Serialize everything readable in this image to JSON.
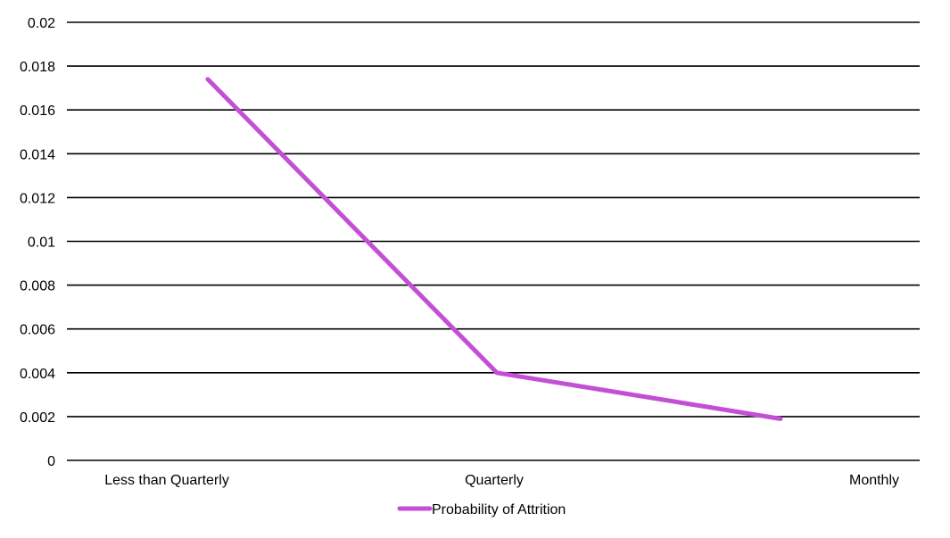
{
  "chart_data": {
    "type": "line",
    "categories": [
      "Less than Quarterly",
      "Quarterly",
      "Monthly"
    ],
    "series": [
      {
        "name": "Probability of Attrition",
        "values": [
          0.0174,
          0.004,
          0.0019
        ],
        "color": "#c44fd6"
      }
    ],
    "y_ticks": [
      "0",
      "0.002",
      "0.004",
      "0.006",
      "0.008",
      "0.01",
      "0.012",
      "0.014",
      "0.016",
      "0.018",
      "0.02"
    ],
    "ylim": [
      0,
      0.02
    ],
    "grid": true,
    "grid_color": "#000000",
    "legend": "bottom-center"
  }
}
